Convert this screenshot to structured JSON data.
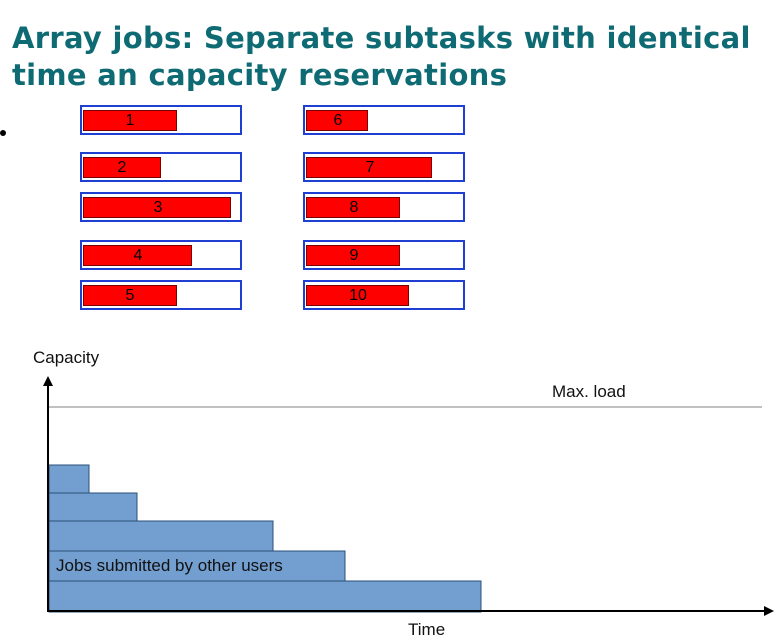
{
  "title": "Array jobs: Separate subtasks with identical time an capacity reservations",
  "jobs": [
    {
      "label": "1",
      "progress": 0.6
    },
    {
      "label": "2",
      "progress": 0.5
    },
    {
      "label": "3",
      "progress": 0.95
    },
    {
      "label": "4",
      "progress": 0.7
    },
    {
      "label": "5",
      "progress": 0.6
    },
    {
      "label": "6",
      "progress": 0.4
    },
    {
      "label": "7",
      "progress": 0.81
    },
    {
      "label": "8",
      "progress": 0.6
    },
    {
      "label": "9",
      "progress": 0.6
    },
    {
      "label": "10",
      "progress": 0.66
    }
  ],
  "diagram": {
    "y_axis_label": "Capacity",
    "x_axis_label": "Time",
    "max_load_label": "Max. load",
    "other_users_label": "Jobs submitted by other users",
    "bar_color": "#729fcf",
    "bar_border": "#2a4f7a",
    "max_line_color": "#808080"
  },
  "colors": {
    "title": "#0f6b73",
    "job_fill": "#ff0000",
    "job_border": "#1f3fd3"
  }
}
